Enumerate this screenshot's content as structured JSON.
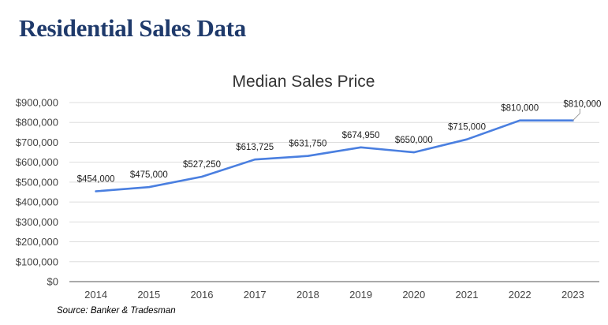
{
  "page": {
    "heading": "Residential Sales Data",
    "source_note": "Source: Banker & Tradesman"
  },
  "chart_data": {
    "type": "line",
    "title": "Median Sales Price",
    "xlabel": "",
    "ylabel": "",
    "categories": [
      "2014",
      "2015",
      "2016",
      "2017",
      "2018",
      "2019",
      "2020",
      "2021",
      "2022",
      "2023"
    ],
    "series": [
      {
        "values": [
          454000,
          475000,
          527250,
          613725,
          631750,
          674950,
          650000,
          715000,
          810000,
          810000
        ],
        "data_labels": [
          "$454,000",
          "$475,000",
          "$527,250",
          "$613,725",
          "$631,750",
          "$674,950",
          "$650,000",
          "$715,000",
          "$810,000",
          "$810,000"
        ]
      }
    ],
    "ylim": [
      0,
      900000
    ],
    "y_ticks": [
      0,
      100000,
      200000,
      300000,
      400000,
      500000,
      600000,
      700000,
      800000,
      900000
    ],
    "y_tick_labels": [
      "$0",
      "$100,000",
      "$200,000",
      "$300,000",
      "$400,000",
      "$500,000",
      "$600,000",
      "$700,000",
      "$800,000",
      "$900,000"
    ],
    "grid": true,
    "legend": "none",
    "colors": {
      "line": "#4a7fe0",
      "heading": "#1f3a6b"
    }
  }
}
